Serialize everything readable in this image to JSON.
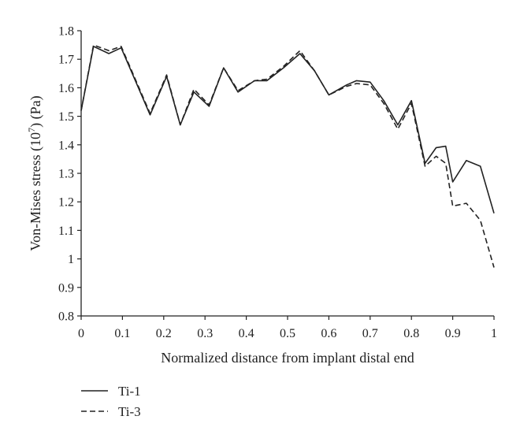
{
  "chart_data": {
    "type": "line",
    "xlabel": "Normalized distance from implant distal end",
    "ylabel": {
      "prefix": "Von-Mises stress (10",
      "exponent": "7",
      "suffix": ") (Pa)"
    },
    "xlim": [
      0,
      1
    ],
    "ylim": [
      0.8,
      1.8
    ],
    "xticks": [
      "0",
      "0.1",
      "0.2",
      "0.3",
      "0.4",
      "0.5",
      "0.6",
      "0.7",
      "0.8",
      "0.9",
      "1"
    ],
    "yticks": [
      "0.8",
      "0.9",
      "1",
      "1.1",
      "1.2",
      "1.3",
      "1.4",
      "1.5",
      "1.6",
      "1.7",
      "1.8"
    ],
    "grid": false,
    "legend": "bottom-left",
    "series": [
      {
        "name": "Ti-1",
        "style": "solid",
        "color": "#222222",
        "x": [
          0,
          0.03,
          0.067,
          0.097,
          0.167,
          0.207,
          0.24,
          0.273,
          0.31,
          0.345,
          0.38,
          0.42,
          0.45,
          0.49,
          0.53,
          0.565,
          0.6,
          0.643,
          0.667,
          0.7,
          0.733,
          0.767,
          0.8,
          0.833,
          0.86,
          0.883,
          0.9,
          0.933,
          0.967,
          1.0
        ],
        "y": [
          1.52,
          1.745,
          1.72,
          1.74,
          1.505,
          1.64,
          1.47,
          1.585,
          1.535,
          1.67,
          1.585,
          1.625,
          1.625,
          1.67,
          1.72,
          1.66,
          1.575,
          1.61,
          1.625,
          1.62,
          1.555,
          1.47,
          1.555,
          1.335,
          1.39,
          1.395,
          1.27,
          1.345,
          1.325,
          1.16
        ]
      },
      {
        "name": "Ti-3",
        "style": "dashed",
        "color": "#222222",
        "x": [
          0,
          0.03,
          0.067,
          0.097,
          0.167,
          0.207,
          0.24,
          0.273,
          0.31,
          0.345,
          0.38,
          0.42,
          0.45,
          0.49,
          0.53,
          0.565,
          0.6,
          0.643,
          0.667,
          0.7,
          0.733,
          0.767,
          0.8,
          0.833,
          0.86,
          0.883,
          0.9,
          0.933,
          0.967,
          1.0
        ],
        "y": [
          1.52,
          1.75,
          1.73,
          1.745,
          1.51,
          1.645,
          1.47,
          1.595,
          1.54,
          1.67,
          1.59,
          1.625,
          1.63,
          1.675,
          1.73,
          1.66,
          1.575,
          1.605,
          1.615,
          1.61,
          1.545,
          1.455,
          1.545,
          1.325,
          1.36,
          1.335,
          1.185,
          1.195,
          1.135,
          0.97
        ]
      }
    ]
  }
}
